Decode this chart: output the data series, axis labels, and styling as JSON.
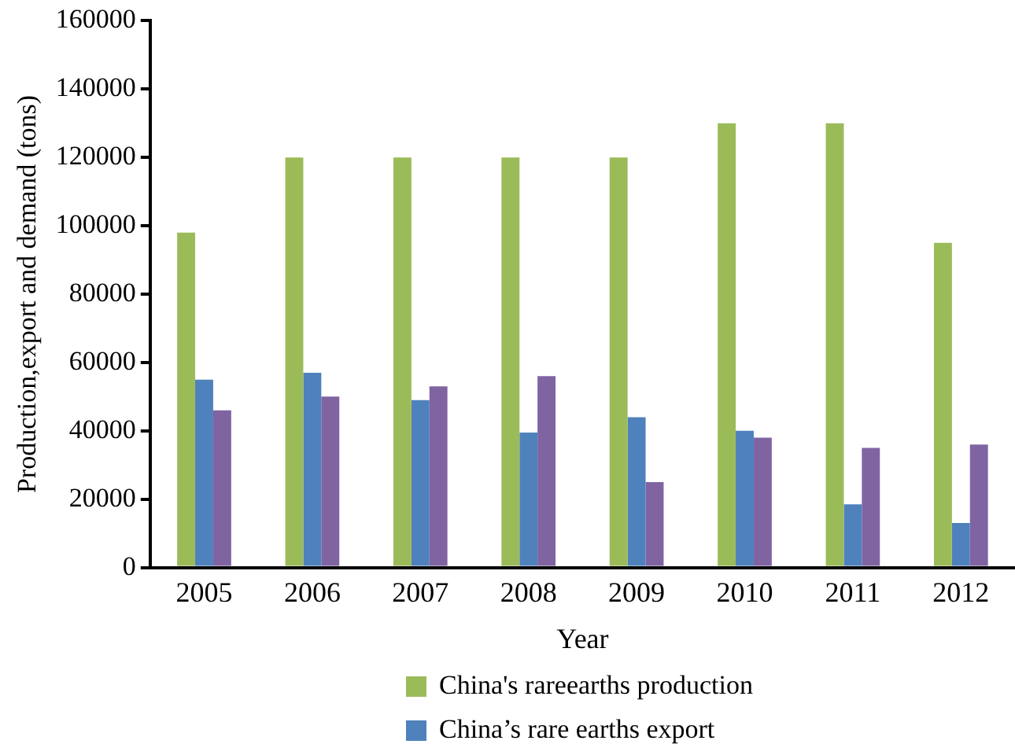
{
  "chart_data": {
    "type": "bar",
    "xlabel": "Year",
    "ylabel": "Production,export and demand (tons)",
    "categories": [
      "2005",
      "2006",
      "2007",
      "2008",
      "2009",
      "2010",
      "2011",
      "2012"
    ],
    "series": [
      {
        "name": "China's rareearths production",
        "color": "#9bbb59",
        "values": [
          98000,
          120000,
          120000,
          120000,
          120000,
          130000,
          130000,
          95000
        ]
      },
      {
        "name": "China’s rare earths export",
        "color": "#4f81bd",
        "values": [
          55000,
          57000,
          49000,
          39500,
          44000,
          40000,
          18500,
          13000
        ]
      },
      {
        "color": "#8064a2",
        "values": [
          46000,
          50000,
          53000,
          56000,
          25000,
          38000,
          35000,
          36000
        ]
      }
    ],
    "ylim": [
      0,
      160000
    ],
    "yticks": [
      0,
      20000,
      40000,
      60000,
      80000,
      100000,
      120000,
      140000,
      160000
    ],
    "grid": false,
    "legend": "bottom"
  }
}
